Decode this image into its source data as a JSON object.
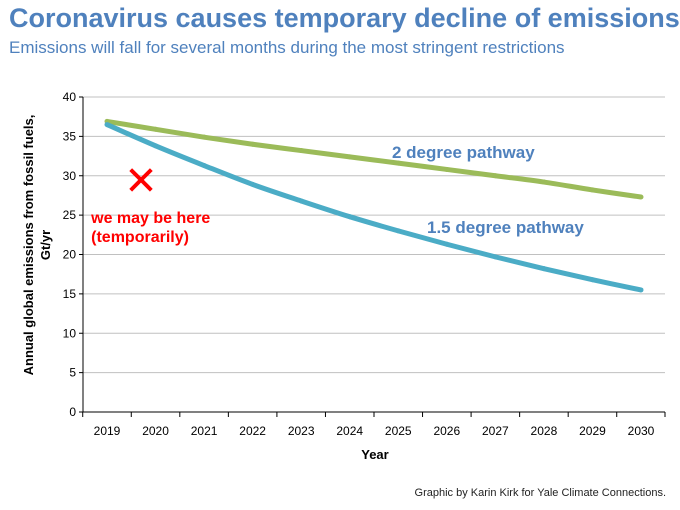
{
  "title": "Coronavirus causes temporary decline of emissions",
  "subtitle": "Emissions will fall for several months during the most stringent restrictions",
  "credit": "Graphic by Karin Kirk for Yale Climate Connections.",
  "colors": {
    "title": "#4f81bd",
    "two_degree": "#9bbb59",
    "one_five_degree": "#4bacc6",
    "two_degree_label": "#4f81bd",
    "one_five_degree_label": "#4f81bd",
    "marker": "#ff0000",
    "grid": "#c0c0c0"
  },
  "chart_data": {
    "type": "line",
    "xlabel": "Year",
    "ylabel_lines": [
      "Annual global emissions from fossil fuels,",
      "Gt/yr"
    ],
    "x": [
      2019,
      2020,
      2021,
      2022,
      2023,
      2024,
      2025,
      2026,
      2027,
      2028,
      2029,
      2030
    ],
    "ylim": [
      0,
      40
    ],
    "yticks": [
      0,
      5,
      10,
      15,
      20,
      25,
      30,
      35,
      40
    ],
    "grid": "horizontal",
    "series": [
      {
        "name": "2 degree pathway",
        "color": "#9bbb59",
        "values": [
          36.9,
          35.9,
          34.9,
          34.0,
          33.2,
          32.4,
          31.6,
          30.8,
          30.0,
          29.2,
          28.2,
          27.3
        ]
      },
      {
        "name": "1.5 degree pathway",
        "color": "#4bacc6",
        "values": [
          36.5,
          33.8,
          31.3,
          28.9,
          26.8,
          24.8,
          23.0,
          21.3,
          19.7,
          18.2,
          16.8,
          15.5
        ]
      }
    ],
    "annotations": [
      {
        "type": "marker",
        "symbol": "✕",
        "x": 2019.7,
        "y": 29.5
      },
      {
        "type": "text",
        "lines": [
          "we may be here",
          "(temporarily)"
        ],
        "x": 2018.9,
        "y": 24.0
      }
    ]
  }
}
